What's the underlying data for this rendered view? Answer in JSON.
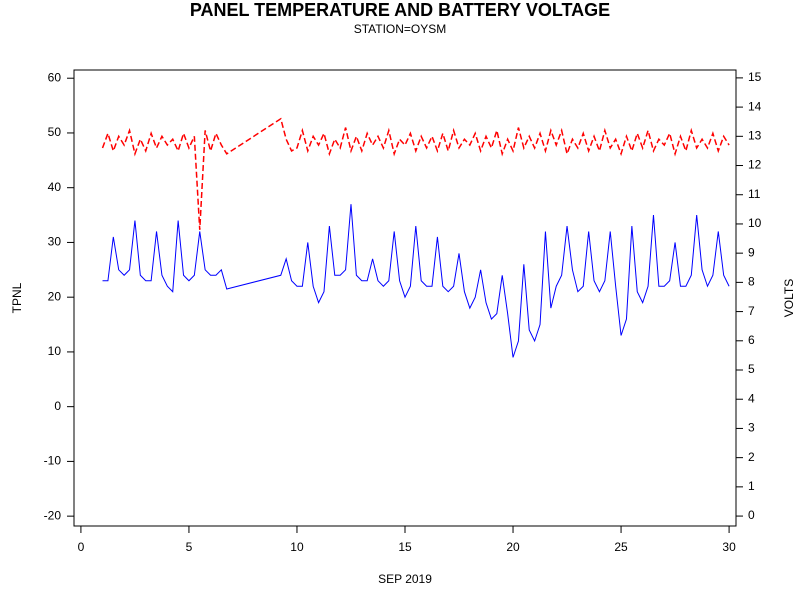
{
  "chart_data": {
    "type": "line",
    "title": "PANEL TEMPERATURE AND BATTERY VOLTAGE",
    "subtitle": "STATION=OYSM",
    "x_label": "SEP 2019",
    "y_label": "TPNL",
    "y2_label": "VOLTS",
    "xlim": [
      -0.32,
      30.32
    ],
    "ylim": [
      -21.8,
      61.5
    ],
    "y2lim": [
      -0.34,
      15.27
    ],
    "xticks": [
      0,
      5,
      10,
      15,
      20,
      25,
      30
    ],
    "yticks": [
      -20,
      -10,
      0,
      10,
      20,
      30,
      40,
      50,
      60
    ],
    "y2ticks": [
      0,
      1,
      2,
      3,
      4,
      5,
      6,
      7,
      8,
      9,
      10,
      11,
      12,
      13,
      14,
      15
    ],
    "x": [
      1,
      1.25,
      1.5,
      1.75,
      2,
      2.25,
      2.5,
      2.75,
      3,
      3.25,
      3.5,
      3.75,
      4,
      4.25,
      4.5,
      4.75,
      5,
      5.25,
      5.5,
      5.75,
      6,
      6.25,
      6.5,
      6.75,
      9.25,
      9.5,
      9.75,
      10,
      10.25,
      10.5,
      10.75,
      11,
      11.25,
      11.5,
      11.75,
      12,
      12.25,
      12.5,
      12.75,
      13,
      13.25,
      13.5,
      13.75,
      14,
      14.25,
      14.5,
      14.75,
      15,
      15.25,
      15.5,
      15.75,
      16,
      16.25,
      16.5,
      16.75,
      17,
      17.25,
      17.5,
      17.75,
      18,
      18.25,
      18.5,
      18.75,
      19,
      19.25,
      19.5,
      19.75,
      20,
      20.25,
      20.5,
      20.75,
      21,
      21.25,
      21.5,
      21.75,
      22,
      22.25,
      22.5,
      22.75,
      23,
      23.25,
      23.5,
      23.75,
      24,
      24.25,
      24.5,
      24.75,
      25,
      25.25,
      25.5,
      25.75,
      26,
      26.25,
      26.5,
      26.75,
      27,
      27.25,
      27.5,
      27.75,
      28,
      28.25,
      28.5,
      28.75,
      29,
      29.25,
      29.5,
      29.75,
      30
    ],
    "series": [
      {
        "color": "#0000ff",
        "axis": "y",
        "dashed": false,
        "values": [
          23,
          23,
          31,
          25,
          24,
          25,
          34,
          24,
          23,
          23,
          32,
          24,
          22,
          21,
          34,
          24,
          23,
          24,
          32,
          25,
          24,
          24,
          25,
          21.5,
          24,
          27,
          23,
          22,
          22,
          30,
          22,
          19,
          21,
          33,
          24,
          24,
          25,
          37,
          24,
          23,
          23,
          27,
          23,
          22,
          23,
          32,
          23,
          20,
          22,
          33,
          23,
          22,
          22,
          31,
          22,
          21,
          22,
          28,
          21,
          18,
          20,
          25,
          19,
          16,
          17,
          24,
          17,
          9,
          12,
          26,
          14,
          12,
          15,
          32,
          18,
          22,
          24,
          33,
          25,
          21,
          22,
          32,
          23,
          21,
          23,
          32,
          22,
          13,
          16,
          33,
          21,
          19,
          22,
          35,
          22,
          22,
          23,
          30,
          22,
          22,
          24,
          35,
          25,
          22,
          24,
          32,
          24,
          22
        ]
      },
      {
        "color": "#ff0000",
        "axis": "y2",
        "dashed": true,
        "values": [
          12.6,
          13.1,
          12.5,
          13.0,
          12.7,
          13.2,
          12.4,
          12.9,
          12.5,
          13.1,
          12.6,
          13.0,
          12.7,
          12.9,
          12.5,
          13.1,
          12.6,
          13.0,
          9.8,
          13.2,
          12.5,
          13.1,
          12.7,
          12.4,
          13.6,
          12.9,
          12.5,
          12.6,
          13.2,
          12.5,
          13.0,
          12.7,
          13.1,
          12.4,
          12.9,
          12.6,
          13.3,
          12.5,
          13.0,
          12.5,
          13.1,
          12.7,
          13.0,
          12.6,
          13.2,
          12.4,
          12.9,
          12.7,
          13.1,
          12.5,
          13.0,
          12.6,
          13.0,
          12.5,
          13.1,
          12.5,
          13.2,
          12.6,
          12.9,
          12.7,
          13.1,
          12.5,
          13.0,
          12.6,
          13.2,
          12.4,
          12.9,
          12.5,
          13.3,
          12.6,
          13.0,
          12.6,
          13.1,
          12.5,
          13.2,
          12.7,
          13.2,
          12.4,
          12.9,
          12.6,
          13.1,
          12.5,
          13.0,
          12.5,
          13.2,
          12.6,
          12.9,
          12.4,
          13.0,
          12.5,
          13.1,
          12.6,
          13.2,
          12.5,
          12.9,
          12.7,
          13.1,
          12.4,
          13.0,
          12.5,
          13.2,
          12.6,
          12.9,
          12.6,
          13.1,
          12.5,
          13.0,
          12.7
        ]
      }
    ]
  }
}
